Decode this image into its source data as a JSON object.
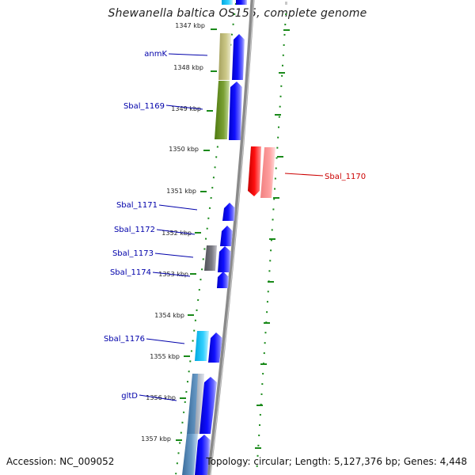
{
  "title": "Shewanella baltica OS155, complete genome",
  "footer": {
    "accession": "Accession: NC_009052",
    "summary": "Topology: circular; Length: 5,127,376 bp; Genes: 4,448"
  },
  "colors": {
    "backbone": "#808080",
    "tick": "#1a8a1a",
    "forward_gene": "#0000ee",
    "reverse_gene": "#e00000",
    "label_forward": "#0000aa",
    "label_reverse": "#cc0000"
  },
  "scale_labels": [
    "1347 kbp",
    "1348 kbp",
    "1349 kbp",
    "1350 kbp",
    "1351 kbp",
    "1352 kbp",
    "1353 kbp",
    "1354 kbp",
    "1355 kbp",
    "1356 kbp",
    "1357 kbp"
  ],
  "gene_labels": [
    {
      "text": "anmK",
      "strand": "forward"
    },
    {
      "text": "Sbal_1169",
      "strand": "forward"
    },
    {
      "text": "Sbal_1170",
      "strand": "reverse"
    },
    {
      "text": "Sbal_1171",
      "strand": "forward"
    },
    {
      "text": "Sbal_1172",
      "strand": "forward"
    },
    {
      "text": "Sbal_1173",
      "strand": "forward"
    },
    {
      "text": "Sbal_1174",
      "strand": "forward"
    },
    {
      "text": "Sbal_1176",
      "strand": "forward"
    },
    {
      "text": "gltD",
      "strand": "forward"
    }
  ]
}
